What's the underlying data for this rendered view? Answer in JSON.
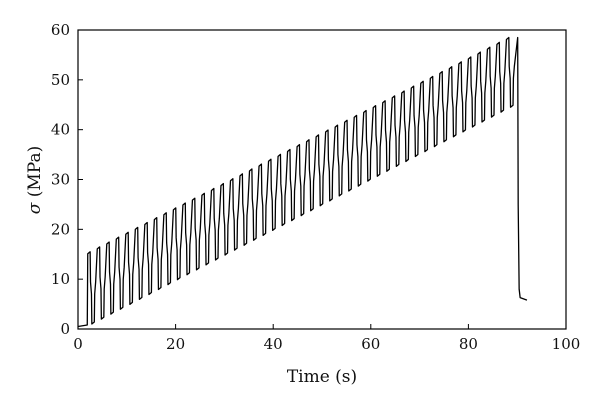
{
  "chart_data": {
    "type": "line",
    "xlabel": "Time (s)",
    "ylabel_symbol": "σ",
    "ylabel_unit": "(MPa)",
    "xlim": [
      0,
      100
    ],
    "ylim": [
      0,
      60
    ],
    "xticks": [
      0,
      20,
      40,
      60,
      80,
      100
    ],
    "yticks": [
      0,
      10,
      20,
      30,
      40,
      50,
      60
    ],
    "grid": false,
    "legend": "none",
    "line_color": "#000000",
    "cycles": {
      "count": 45,
      "t_start": 1.9,
      "period": 1.95,
      "upper_start": 15.5,
      "upper_end": 58.5,
      "lower_start": 1.0,
      "lower_end": 44.5
    },
    "series": [
      {
        "values": [
          [
            0.0,
            0.5
          ],
          [
            1.9,
            0.8
          ],
          [
            90.1,
            58.5
          ],
          [
            90.2,
            25.0
          ],
          [
            90.4,
            8.0
          ],
          [
            90.6,
            6.3
          ],
          [
            92.0,
            5.8
          ]
        ]
      }
    ]
  }
}
